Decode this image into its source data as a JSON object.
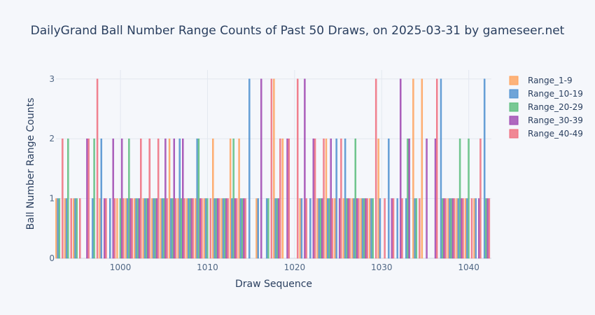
{
  "chart_data": {
    "type": "bar",
    "title": "DailyGrand Ball Number Range Counts of Past 50 Draws, on 2025-03-31 by gameseer.net",
    "xlabel": "Draw Sequence",
    "ylabel": "Ball Number Range Counts",
    "xlim": [
      992.6,
      1042.6
    ],
    "ylim": [
      0,
      3.15
    ],
    "x_ticks": [
      1000,
      1010,
      1020,
      1030,
      1040
    ],
    "y_ticks": [
      0,
      1,
      2,
      3
    ],
    "grid": true,
    "legend_position": "top-right",
    "x": [
      993,
      994,
      995,
      996,
      997,
      998,
      999,
      1000,
      1001,
      1002,
      1003,
      1004,
      1005,
      1006,
      1007,
      1008,
      1009,
      1010,
      1011,
      1012,
      1013,
      1014,
      1015,
      1016,
      1017,
      1018,
      1019,
      1020,
      1021,
      1022,
      1023,
      1024,
      1025,
      1026,
      1027,
      1028,
      1029,
      1030,
      1031,
      1032,
      1033,
      1034,
      1035,
      1036,
      1037,
      1038,
      1039,
      1040,
      1041,
      1042
    ],
    "series": [
      {
        "name": "Range_1-9",
        "color": "#ffa15a",
        "values": [
          1,
          1,
          1,
          0,
          0,
          1,
          0,
          1,
          1,
          1,
          1,
          1,
          1,
          2,
          1,
          1,
          1,
          1,
          2,
          1,
          2,
          2,
          0,
          1,
          0,
          3,
          2,
          0,
          1,
          0,
          1,
          2,
          1,
          1,
          1,
          1,
          1,
          2,
          0,
          0,
          0,
          3,
          3,
          0,
          0,
          1,
          1,
          1,
          1,
          0
        ]
      },
      {
        "name": "Range_10-19",
        "color": "#4c8fd0",
        "values": [
          1,
          1,
          1,
          0,
          1,
          2,
          1,
          0,
          1,
          1,
          1,
          1,
          1,
          1,
          2,
          1,
          2,
          1,
          1,
          1,
          1,
          1,
          3,
          1,
          1,
          1,
          0,
          0,
          1,
          1,
          1,
          1,
          2,
          2,
          1,
          1,
          1,
          1,
          2,
          1,
          1,
          1,
          0,
          0,
          3,
          1,
          1,
          1,
          1,
          3
        ]
      },
      {
        "name": "Range_20-29",
        "color": "#59bc7a",
        "values": [
          1,
          2,
          1,
          0,
          2,
          0,
          0,
          1,
          2,
          1,
          1,
          1,
          1,
          1,
          1,
          1,
          2,
          1,
          1,
          1,
          2,
          1,
          0,
          0,
          1,
          1,
          0,
          0,
          0,
          0,
          1,
          1,
          0,
          1,
          2,
          1,
          1,
          0,
          0,
          0,
          2,
          1,
          0,
          0,
          1,
          1,
          2,
          2,
          0,
          1
        ]
      },
      {
        "name": "Range_30-39",
        "color": "#9d45b0",
        "values": [
          0,
          0,
          0,
          2,
          0,
          1,
          2,
          2,
          1,
          1,
          1,
          1,
          2,
          2,
          2,
          1,
          1,
          0,
          1,
          1,
          1,
          1,
          0,
          3,
          0,
          1,
          2,
          0,
          3,
          2,
          1,
          2,
          1,
          1,
          1,
          1,
          0,
          0,
          1,
          3,
          2,
          0,
          2,
          2,
          1,
          1,
          1,
          0,
          1,
          1
        ]
      },
      {
        "name": "Range_40-49",
        "color": "#ef6b7c",
        "values": [
          2,
          1,
          1,
          2,
          3,
          1,
          1,
          1,
          1,
          2,
          2,
          2,
          1,
          1,
          1,
          1,
          1,
          1,
          1,
          1,
          1,
          1,
          0,
          0,
          3,
          2,
          2,
          3,
          1,
          2,
          2,
          1,
          2,
          1,
          1,
          1,
          3,
          1,
          1,
          1,
          0,
          1,
          0,
          3,
          1,
          1,
          1,
          1,
          2,
          1
        ]
      }
    ]
  }
}
